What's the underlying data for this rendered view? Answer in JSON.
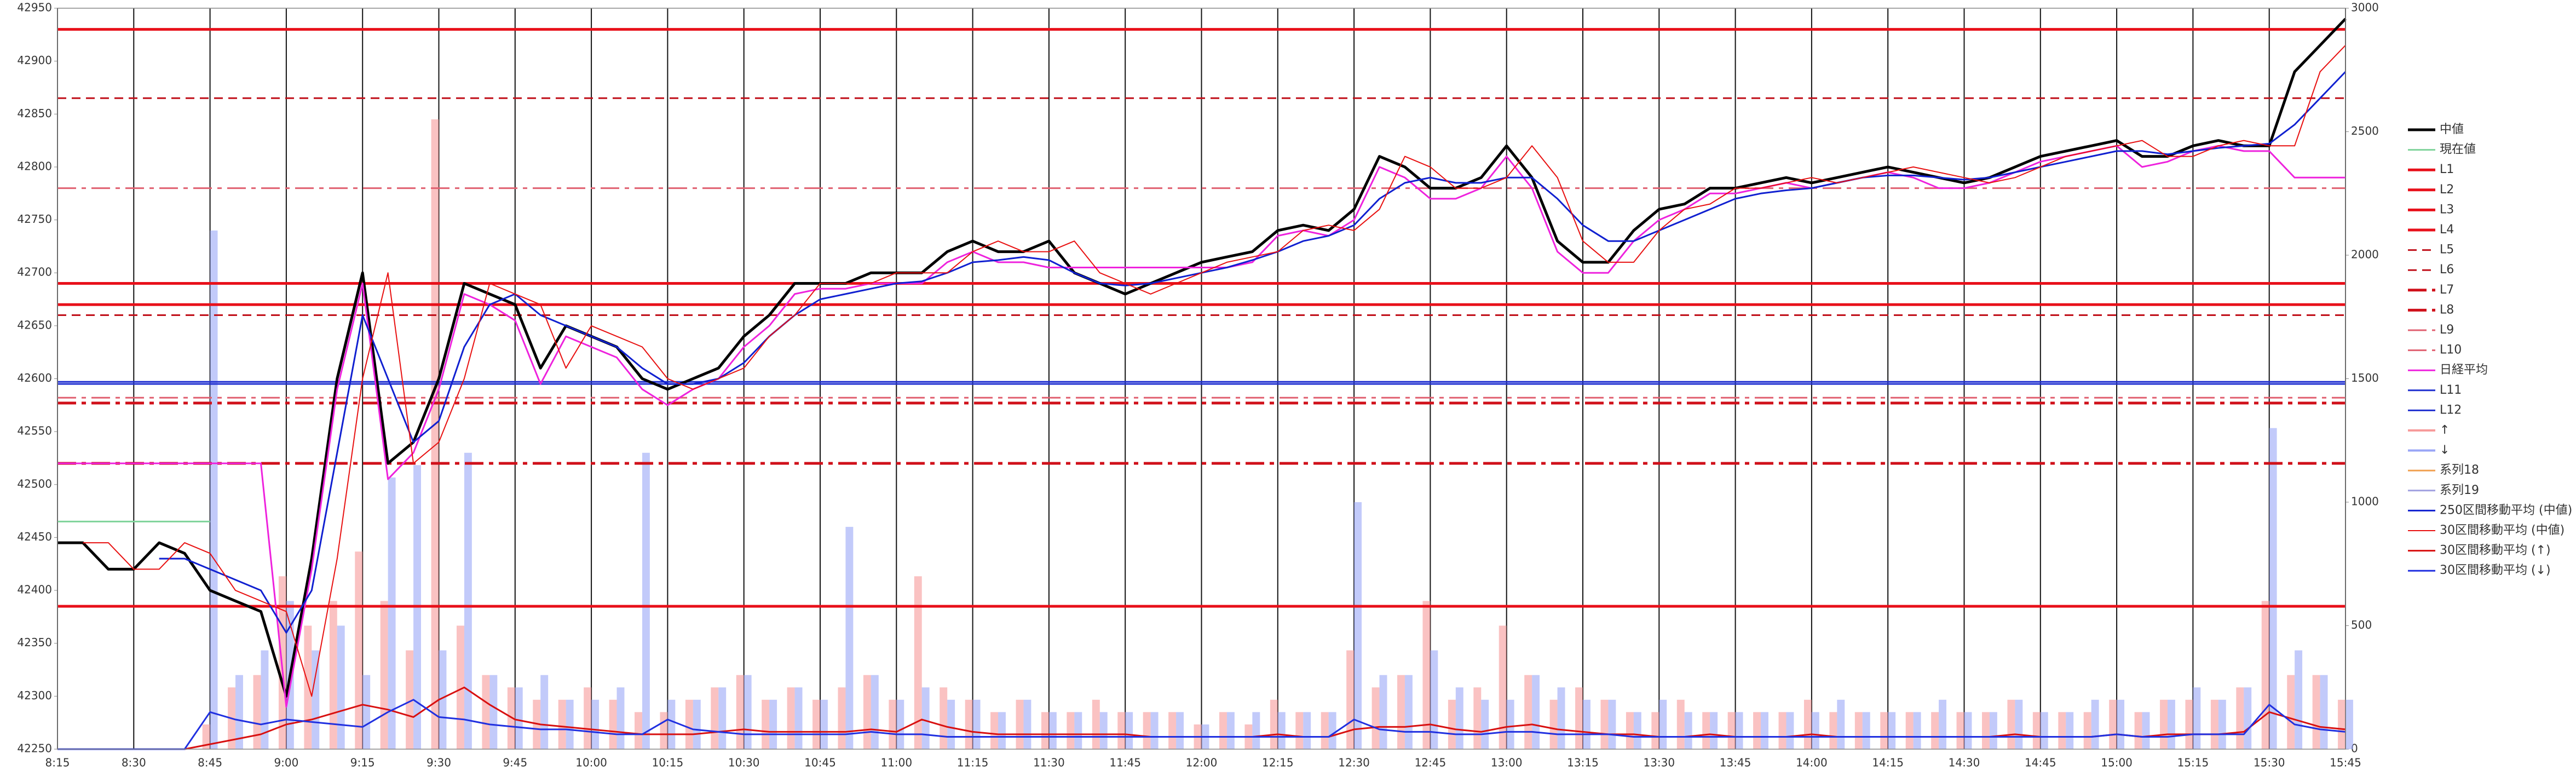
{
  "chart_data": {
    "type": "line",
    "x": [
      "8:15",
      "8:20",
      "8:25",
      "8:30",
      "8:35",
      "8:40",
      "8:45",
      "8:50",
      "8:55",
      "9:00",
      "9:05",
      "9:10",
      "9:15",
      "9:20",
      "9:25",
      "9:30",
      "9:35",
      "9:40",
      "9:45",
      "9:50",
      "9:55",
      "10:00",
      "10:05",
      "10:10",
      "10:15",
      "10:20",
      "10:25",
      "10:30",
      "10:35",
      "10:40",
      "10:45",
      "10:50",
      "10:55",
      "11:00",
      "11:05",
      "11:10",
      "11:15",
      "11:20",
      "11:25",
      "11:30",
      "11:35",
      "11:40",
      "11:45",
      "11:50",
      "11:55",
      "12:00",
      "12:05",
      "12:10",
      "12:15",
      "12:20",
      "12:25",
      "12:30",
      "12:35",
      "12:40",
      "12:45",
      "12:50",
      "12:55",
      "13:00",
      "13:05",
      "13:10",
      "13:15",
      "13:20",
      "13:25",
      "13:30",
      "13:35",
      "13:40",
      "13:45",
      "13:50",
      "13:55",
      "14:00",
      "14:05",
      "14:10",
      "14:15",
      "14:20",
      "14:25",
      "14:30",
      "14:35",
      "14:40",
      "14:45",
      "14:50",
      "14:55",
      "15:00",
      "15:05",
      "15:10",
      "15:15",
      "15:20",
      "15:25",
      "15:30",
      "15:35",
      "15:40",
      "15:45"
    ],
    "xlim": [
      "8:15",
      "15:45"
    ],
    "xticks": [
      "8:15",
      "8:30",
      "8:45",
      "9:00",
      "9:15",
      "9:30",
      "9:45",
      "10:00",
      "10:15",
      "10:30",
      "10:45",
      "11:00",
      "11:15",
      "11:30",
      "11:45",
      "12:00",
      "12:15",
      "12:30",
      "12:45",
      "13:00",
      "13:15",
      "13:30",
      "13:45",
      "14:00",
      "14:15",
      "14:30",
      "14:45",
      "15:00",
      "15:15",
      "15:30",
      "15:45"
    ],
    "ylim": [
      42250,
      42950
    ],
    "yticks": [
      42250,
      42300,
      42350,
      42400,
      42450,
      42500,
      42550,
      42600,
      42650,
      42700,
      42750,
      42800,
      42850,
      42900,
      42950
    ],
    "y2lim": [
      0,
      3000
    ],
    "y2ticks": [
      0,
      500,
      1000,
      1500,
      2000,
      2500,
      3000
    ],
    "xgrid": true,
    "series": [
      {
        "name": "中値",
        "color": "#000000",
        "width": 5,
        "values": [
          42445,
          42445,
          42420,
          42420,
          42445,
          42435,
          42400,
          42390,
          42380,
          42300,
          42430,
          42600,
          42700,
          42520,
          42540,
          42600,
          42690,
          42680,
          42670,
          42610,
          42650,
          42640,
          42630,
          42600,
          42590,
          42600,
          42610,
          42640,
          42660,
          42690,
          42690,
          42690,
          42700,
          42700,
          42700,
          42720,
          42730,
          42720,
          42720,
          42730,
          42700,
          42690,
          42680,
          42690,
          42700,
          42710,
          42715,
          42720,
          42740,
          42745,
          42740,
          42760,
          42810,
          42800,
          42780,
          42780,
          42790,
          42820,
          42790,
          42730,
          42710,
          42710,
          42740,
          42760,
          42765,
          42780,
          42780,
          42785,
          42790,
          42785,
          42790,
          42795,
          42800,
          42795,
          42790,
          42785,
          42790,
          42800,
          42810,
          42815,
          42820,
          42825,
          42810,
          42810,
          42820,
          42825,
          42820,
          42820,
          42890,
          42915,
          42940
        ]
      },
      {
        "name": "現在値",
        "color": "#7fd39a",
        "width": 3,
        "values": [
          42465,
          42465,
          42465,
          42465,
          42465,
          42465,
          42465,
          null,
          null,
          null,
          null,
          null,
          null,
          null,
          null,
          null,
          null,
          null,
          null,
          null,
          null,
          null,
          null,
          null,
          null,
          null,
          null,
          null,
          null,
          null,
          null,
          null,
          null,
          null,
          null,
          null,
          null,
          null,
          null,
          null,
          null,
          null,
          null,
          null,
          null,
          null,
          null,
          null,
          null,
          null,
          null,
          null,
          null,
          null,
          null,
          null,
          null,
          null,
          null,
          null,
          null,
          null,
          null,
          null,
          null,
          null,
          null,
          null,
          null,
          null,
          null,
          null,
          null,
          null,
          null,
          null,
          null,
          null,
          null,
          null,
          null,
          null,
          null,
          null,
          null,
          null,
          null,
          null,
          null,
          null,
          null
        ]
      },
      {
        "name": "L1",
        "kind": "level",
        "color": "#e8101a",
        "width": 5,
        "value": 42930
      },
      {
        "name": "L2",
        "kind": "level",
        "color": "#e8101a",
        "width": 5,
        "value": 42690
      },
      {
        "name": "L3",
        "kind": "level",
        "color": "#e8101a",
        "width": 5,
        "value": 42670
      },
      {
        "name": "L4",
        "kind": "level",
        "color": "#e8101a",
        "width": 5,
        "value": 42385
      },
      {
        "name": "L5",
        "kind": "level",
        "color": "#c0101a",
        "width": 3,
        "dash": "dash",
        "value": 42865
      },
      {
        "name": "L6",
        "kind": "level",
        "color": "#c0101a",
        "width": 3,
        "dash": "dash",
        "value": 42660
      },
      {
        "name": "L7",
        "kind": "level",
        "color": "#d0101a",
        "width": 5,
        "dash": "dashdot",
        "value": 42577
      },
      {
        "name": "L8",
        "kind": "level",
        "color": "#d0101a",
        "width": 5,
        "dash": "dashdot",
        "value": 42520
      },
      {
        "name": "L9",
        "kind": "level",
        "color": "#e06070",
        "width": 3,
        "dash": "dashdot",
        "value": 42780
      },
      {
        "name": "L10",
        "kind": "level",
        "color": "#e06070",
        "width": 3,
        "dash": "dashdot",
        "value": 42582
      },
      {
        "name": "日経平均",
        "color": "#ee22dd",
        "width": 3,
        "values": [
          42520,
          42520,
          42520,
          42520,
          42520,
          42520,
          42520,
          42520,
          42520,
          42290,
          42420,
          42590,
          42690,
          42505,
          42530,
          42590,
          42680,
          42670,
          42655,
          42595,
          42640,
          42630,
          42620,
          42590,
          42575,
          42590,
          42600,
          42630,
          42650,
          42680,
          42685,
          42685,
          42690,
          42690,
          42690,
          42710,
          42720,
          42710,
          42710,
          42705,
          42705,
          42705,
          42705,
          42705,
          42705,
          42705,
          42705,
          42710,
          42735,
          42740,
          42735,
          42750,
          42800,
          42790,
          42770,
          42770,
          42780,
          42810,
          42780,
          42720,
          42700,
          42700,
          42730,
          42750,
          42760,
          42775,
          42775,
          42780,
          42785,
          42780,
          42785,
          42790,
          42795,
          42790,
          42780,
          42780,
          42785,
          42795,
          42805,
          42810,
          42815,
          42820,
          42800,
          42805,
          42815,
          42820,
          42815,
          42815,
          42790,
          42790,
          42790
        ]
      },
      {
        "name": "L11",
        "kind": "level",
        "color": "#2030d0",
        "width": 3,
        "value": 42595
      },
      {
        "name": "L12",
        "kind": "level",
        "color": "#2030d0",
        "width": 3,
        "value": 42597
      },
      {
        "name": "↑",
        "kind": "bar",
        "axis": "y2",
        "color": "#f79a9a",
        "values": [
          0,
          0,
          0,
          0,
          0,
          0,
          100,
          250,
          300,
          700,
          500,
          600,
          800,
          600,
          400,
          2550,
          500,
          300,
          250,
          200,
          200,
          250,
          200,
          150,
          150,
          200,
          250,
          300,
          200,
          250,
          200,
          250,
          300,
          200,
          700,
          250,
          200,
          150,
          200,
          150,
          150,
          200,
          150,
          150,
          150,
          100,
          150,
          100,
          200,
          150,
          150,
          400,
          250,
          300,
          600,
          200,
          250,
          500,
          300,
          200,
          250,
          200,
          150,
          150,
          200,
          150,
          150,
          150,
          150,
          200,
          150,
          150,
          150,
          150,
          150,
          150,
          150,
          200,
          150,
          150,
          150,
          200,
          150,
          200,
          200,
          200,
          250,
          600,
          300,
          300,
          200
        ]
      },
      {
        "name": "↓",
        "kind": "bar",
        "axis": "y2",
        "color": "#9aa6f7",
        "values": [
          0,
          0,
          0,
          0,
          0,
          0,
          2100,
          300,
          400,
          600,
          400,
          500,
          300,
          1100,
          1150,
          400,
          1200,
          300,
          250,
          300,
          200,
          200,
          250,
          1200,
          200,
          200,
          250,
          300,
          200,
          250,
          200,
          900,
          300,
          200,
          250,
          200,
          200,
          150,
          200,
          150,
          150,
          150,
          150,
          150,
          150,
          100,
          150,
          150,
          150,
          150,
          150,
          1000,
          300,
          300,
          400,
          250,
          200,
          200,
          300,
          250,
          200,
          200,
          150,
          200,
          150,
          150,
          150,
          150,
          150,
          150,
          200,
          150,
          150,
          150,
          200,
          150,
          150,
          200,
          150,
          150,
          200,
          200,
          150,
          200,
          250,
          200,
          250,
          1300,
          400,
          300,
          200
        ]
      },
      {
        "name": "系列18",
        "color": "#f0a050",
        "width": 3
      },
      {
        "name": "系列19",
        "color": "#a0a0e0",
        "width": 3
      },
      {
        "name": "250区間移動平均 (中値)",
        "color": "#1020d0",
        "width": 3,
        "values": [
          null,
          null,
          null,
          null,
          42430,
          42430,
          42420,
          42410,
          42400,
          42360,
          42400,
          42530,
          42660,
          42600,
          42540,
          42560,
          42630,
          42670,
          42680,
          42660,
          42650,
          42640,
          42630,
          42610,
          42595,
          42595,
          42600,
          42615,
          42640,
          42660,
          42675,
          42680,
          42685,
          42690,
          42692,
          42700,
          42710,
          42712,
          42715,
          42712,
          42700,
          42690,
          42688,
          42690,
          42695,
          42700,
          42705,
          42712,
          42720,
          42730,
          42735,
          42745,
          42770,
          42785,
          42790,
          42785,
          42785,
          42790,
          42790,
          42770,
          42745,
          42730,
          42730,
          42740,
          42750,
          42760,
          42770,
          42775,
          42778,
          42780,
          42785,
          42790,
          42792,
          42792,
          42790,
          42788,
          42790,
          42795,
          42800,
          42805,
          42810,
          42815,
          42815,
          42812,
          42815,
          42818,
          42820,
          42822,
          42840,
          42865,
          42890
        ]
      },
      {
        "name": "30区間移動平均 (中値)",
        "color": "#e81010",
        "width": 2,
        "values": [
          null,
          42445,
          42445,
          42420,
          42420,
          42445,
          42435,
          42400,
          42390,
          42380,
          42300,
          42430,
          42600,
          42700,
          42520,
          42540,
          42600,
          42690,
          42680,
          42670,
          42610,
          42650,
          42640,
          42630,
          42600,
          42590,
          42600,
          42610,
          42640,
          42660,
          42690,
          42690,
          42690,
          42700,
          42700,
          42700,
          42720,
          42730,
          42720,
          42720,
          42730,
          42700,
          42690,
          42680,
          42690,
          42700,
          42710,
          42715,
          42720,
          42740,
          42745,
          42740,
          42760,
          42810,
          42800,
          42780,
          42780,
          42790,
          42820,
          42790,
          42730,
          42710,
          42710,
          42740,
          42760,
          42765,
          42780,
          42780,
          42785,
          42790,
          42785,
          42790,
          42795,
          42800,
          42795,
          42790,
          42785,
          42790,
          42800,
          42810,
          42815,
          42820,
          42825,
          42810,
          42810,
          42820,
          42825,
          42820,
          42820,
          42890,
          42915
        ]
      },
      {
        "name": "30区間移動平均 (↑)",
        "axis": "y2",
        "color": "#d81010",
        "width": 3,
        "values": [
          0,
          0,
          0,
          0,
          0,
          0,
          20,
          40,
          60,
          100,
          120,
          150,
          180,
          160,
          130,
          200,
          250,
          180,
          120,
          100,
          90,
          80,
          70,
          60,
          60,
          60,
          70,
          80,
          70,
          70,
          70,
          70,
          80,
          70,
          120,
          90,
          70,
          60,
          60,
          60,
          60,
          60,
          60,
          50,
          50,
          50,
          50,
          50,
          60,
          50,
          50,
          80,
          90,
          90,
          100,
          80,
          70,
          90,
          100,
          80,
          70,
          60,
          60,
          50,
          50,
          60,
          50,
          50,
          50,
          60,
          50,
          50,
          50,
          50,
          50,
          50,
          50,
          60,
          50,
          50,
          50,
          60,
          50,
          60,
          60,
          60,
          70,
          150,
          120,
          90,
          80
        ]
      },
      {
        "name": "30区間移動平均 (↓)",
        "axis": "y2",
        "color": "#2030e0",
        "width": 3,
        "values": [
          0,
          0,
          0,
          0,
          0,
          0,
          150,
          120,
          100,
          120,
          110,
          100,
          90,
          150,
          200,
          130,
          120,
          100,
          90,
          80,
          80,
          70,
          60,
          60,
          120,
          80,
          70,
          60,
          60,
          60,
          60,
          60,
          70,
          60,
          60,
          50,
          50,
          50,
          50,
          50,
          50,
          50,
          50,
          50,
          50,
          50,
          50,
          50,
          50,
          50,
          50,
          120,
          80,
          70,
          70,
          60,
          60,
          70,
          70,
          60,
          60,
          60,
          50,
          50,
          50,
          50,
          50,
          50,
          50,
          50,
          50,
          50,
          50,
          50,
          50,
          50,
          50,
          50,
          50,
          50,
          50,
          60,
          50,
          50,
          60,
          60,
          60,
          180,
          100,
          80,
          70
        ]
      }
    ]
  }
}
